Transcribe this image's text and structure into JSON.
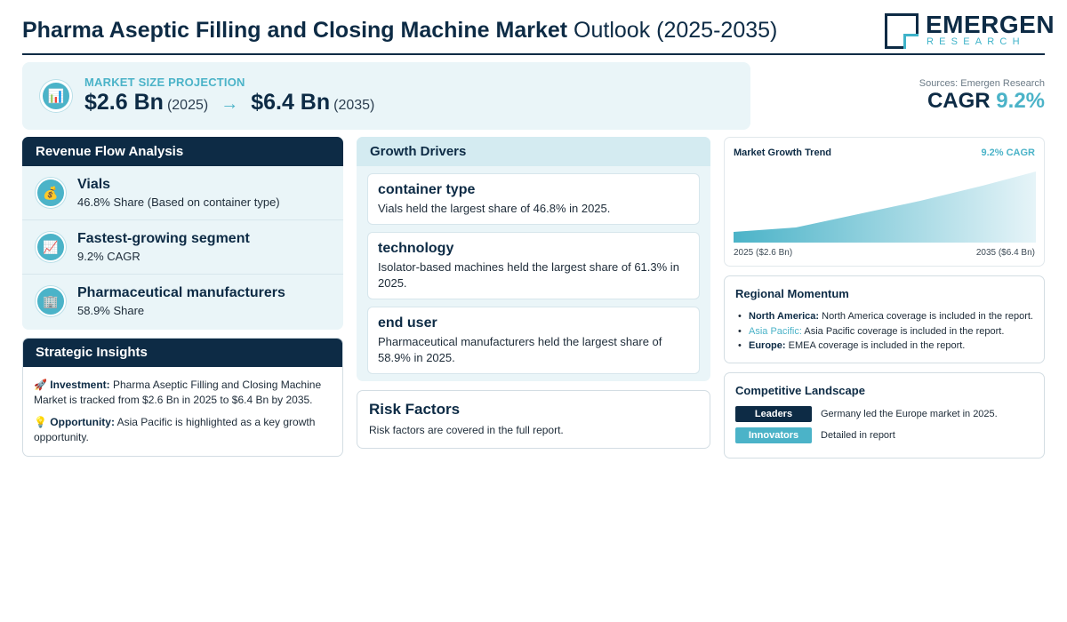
{
  "header": {
    "title_bold": "Pharma Aseptic Filling and Closing Machine Market",
    "title_light": "Outlook (2025-2035)",
    "logo_name": "EMERGEN",
    "logo_sub": "RESEARCH"
  },
  "projection": {
    "label": "MARKET SIZE PROJECTION",
    "icon": "bar-chart-icon",
    "start_value": "$2.6 Bn",
    "start_year": "(2025)",
    "arrow": "→",
    "end_value": "$6.4 Bn",
    "end_year": "(2035)"
  },
  "sources": "Sources: Emergen Research",
  "cagr": {
    "label": "CAGR",
    "value": "9.2%"
  },
  "revenue_flow": {
    "title": "Revenue Flow Analysis",
    "items": [
      {
        "icon": "money-bag-icon",
        "glyph": "💰",
        "title": "Vials",
        "sub": "46.8% Share (Based on container type)"
      },
      {
        "icon": "trend-chart-icon",
        "glyph": "📈",
        "title": "Fastest-growing segment",
        "sub": "9.2% CAGR"
      },
      {
        "icon": "building-icon",
        "glyph": "🏢",
        "title": "Pharmaceutical manufacturers",
        "sub": "58.9% Share"
      }
    ]
  },
  "strategic": {
    "title": "Strategic Insights",
    "investment_label": "Investment:",
    "investment_text": "Pharma Aseptic Filling and Closing Machine Market is tracked from $2.6 Bn in 2025 to $6.4 Bn by 2035.",
    "opportunity_label": "Opportunity:",
    "opportunity_text": "Asia Pacific is highlighted as a key growth opportunity."
  },
  "drivers": {
    "title": "Growth Drivers",
    "items": [
      {
        "title": "container type",
        "text": "Vials held the largest share of 46.8% in 2025."
      },
      {
        "title": "technology",
        "text": "Isolator-based machines held the largest share of 61.3% in 2025."
      },
      {
        "title": "end user",
        "text": "Pharmaceutical manufacturers held the largest share of 58.9% in 2025."
      }
    ]
  },
  "risk": {
    "title": "Risk Factors",
    "text": "Risk factors are covered in the full report."
  },
  "trend": {
    "title": "Market Growth Trend",
    "cagr_label": "9.2% CAGR",
    "start_label": "2025 ($2.6 Bn)",
    "end_label": "2035 ($6.4 Bn)",
    "colors": {
      "fill_start": "#4bb3c8",
      "fill_end": "#e6f4f8"
    }
  },
  "regional": {
    "title": "Regional Momentum",
    "items": [
      {
        "region": "North America:",
        "text": "North America coverage is included in the report."
      },
      {
        "region": "Asia Pacific:",
        "text": "Asia Pacific coverage is included in the report."
      },
      {
        "region": "Europe:",
        "text": "EMEA coverage is included in the report."
      }
    ]
  },
  "competitive": {
    "title": "Competitive Landscape",
    "rows": [
      {
        "tag": "Leaders",
        "text": "Germany led the Europe market in 2025."
      },
      {
        "tag": "Innovators",
        "text": "Detailed in report"
      }
    ]
  }
}
